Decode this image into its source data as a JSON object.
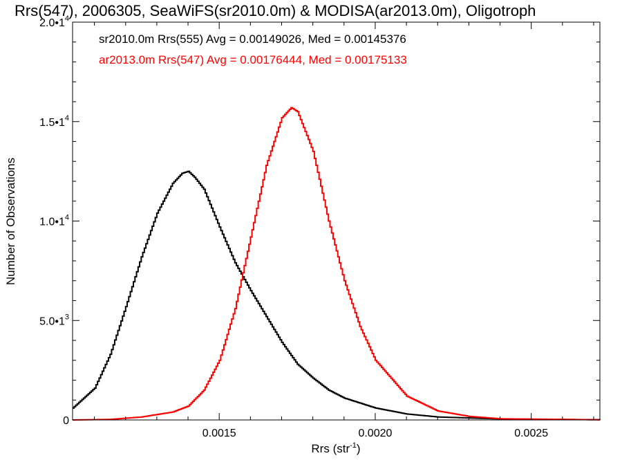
{
  "chart_data": {
    "type": "line",
    "title": "Rrs(547), 2006305, SeaWiFS(sr2010.0m) & MODISA(ar2013.0m), Oligotroph",
    "xlabel": "Rrs (str",
    "xlabel_sup": "-1",
    "xlabel_end": ")",
    "ylabel": "Number of Observations",
    "xlim": [
      0.00103,
      0.00272
    ],
    "ylim": [
      0,
      20000
    ],
    "x_ticks": [
      {
        "value": 0.0015,
        "label": "0.0015"
      },
      {
        "value": 0.002,
        "label": "0.0020"
      },
      {
        "value": 0.0025,
        "label": "0.0025"
      }
    ],
    "y_ticks": [
      {
        "value": 0,
        "base": "0",
        "exp": ""
      },
      {
        "value": 5000,
        "base": "5.0•1",
        "exp": "3"
      },
      {
        "value": 10000,
        "base": "1.0•1",
        "exp": "4"
      },
      {
        "value": 15000,
        "base": "1.5•1",
        "exp": "4"
      },
      {
        "value": 20000,
        "base": "2.0•1",
        "exp": "4"
      }
    ],
    "legend_placement": "top-left",
    "series": [
      {
        "name": "sr2010.0m Rrs(555) Avg = 0.00149026, Med = 0.00145376",
        "color": "#000000",
        "step": true,
        "x": [
          0.00103,
          0.0011,
          0.00115,
          0.0012,
          0.00125,
          0.0013,
          0.00135,
          0.00138,
          0.0014,
          0.00142,
          0.00145,
          0.0015,
          0.00155,
          0.0016,
          0.00165,
          0.0017,
          0.00175,
          0.0018,
          0.00185,
          0.0019,
          0.002,
          0.0021,
          0.0022,
          0.0024,
          0.00272
        ],
        "y": [
          600,
          1600,
          3300,
          5700,
          8200,
          10400,
          11900,
          12400,
          12500,
          12200,
          11600,
          9700,
          7900,
          6500,
          5200,
          3900,
          2800,
          2100,
          1500,
          1100,
          600,
          300,
          150,
          50,
          10
        ]
      },
      {
        "name": "ar2013.0m Rrs(547) Avg = 0.00176444, Med = 0.00175133",
        "color": "#ff0000",
        "step": true,
        "x": [
          0.00103,
          0.00115,
          0.00125,
          0.00135,
          0.0014,
          0.00145,
          0.0015,
          0.00155,
          0.0016,
          0.00165,
          0.0017,
          0.00173,
          0.00175,
          0.0018,
          0.00185,
          0.0019,
          0.00195,
          0.002,
          0.0021,
          0.0022,
          0.0023,
          0.0024,
          0.00272
        ],
        "y": [
          0,
          30,
          150,
          400,
          700,
          1500,
          3000,
          5600,
          9200,
          12800,
          15200,
          15700,
          15500,
          13500,
          10000,
          7000,
          4700,
          3000,
          1200,
          450,
          180,
          60,
          10
        ]
      }
    ]
  }
}
